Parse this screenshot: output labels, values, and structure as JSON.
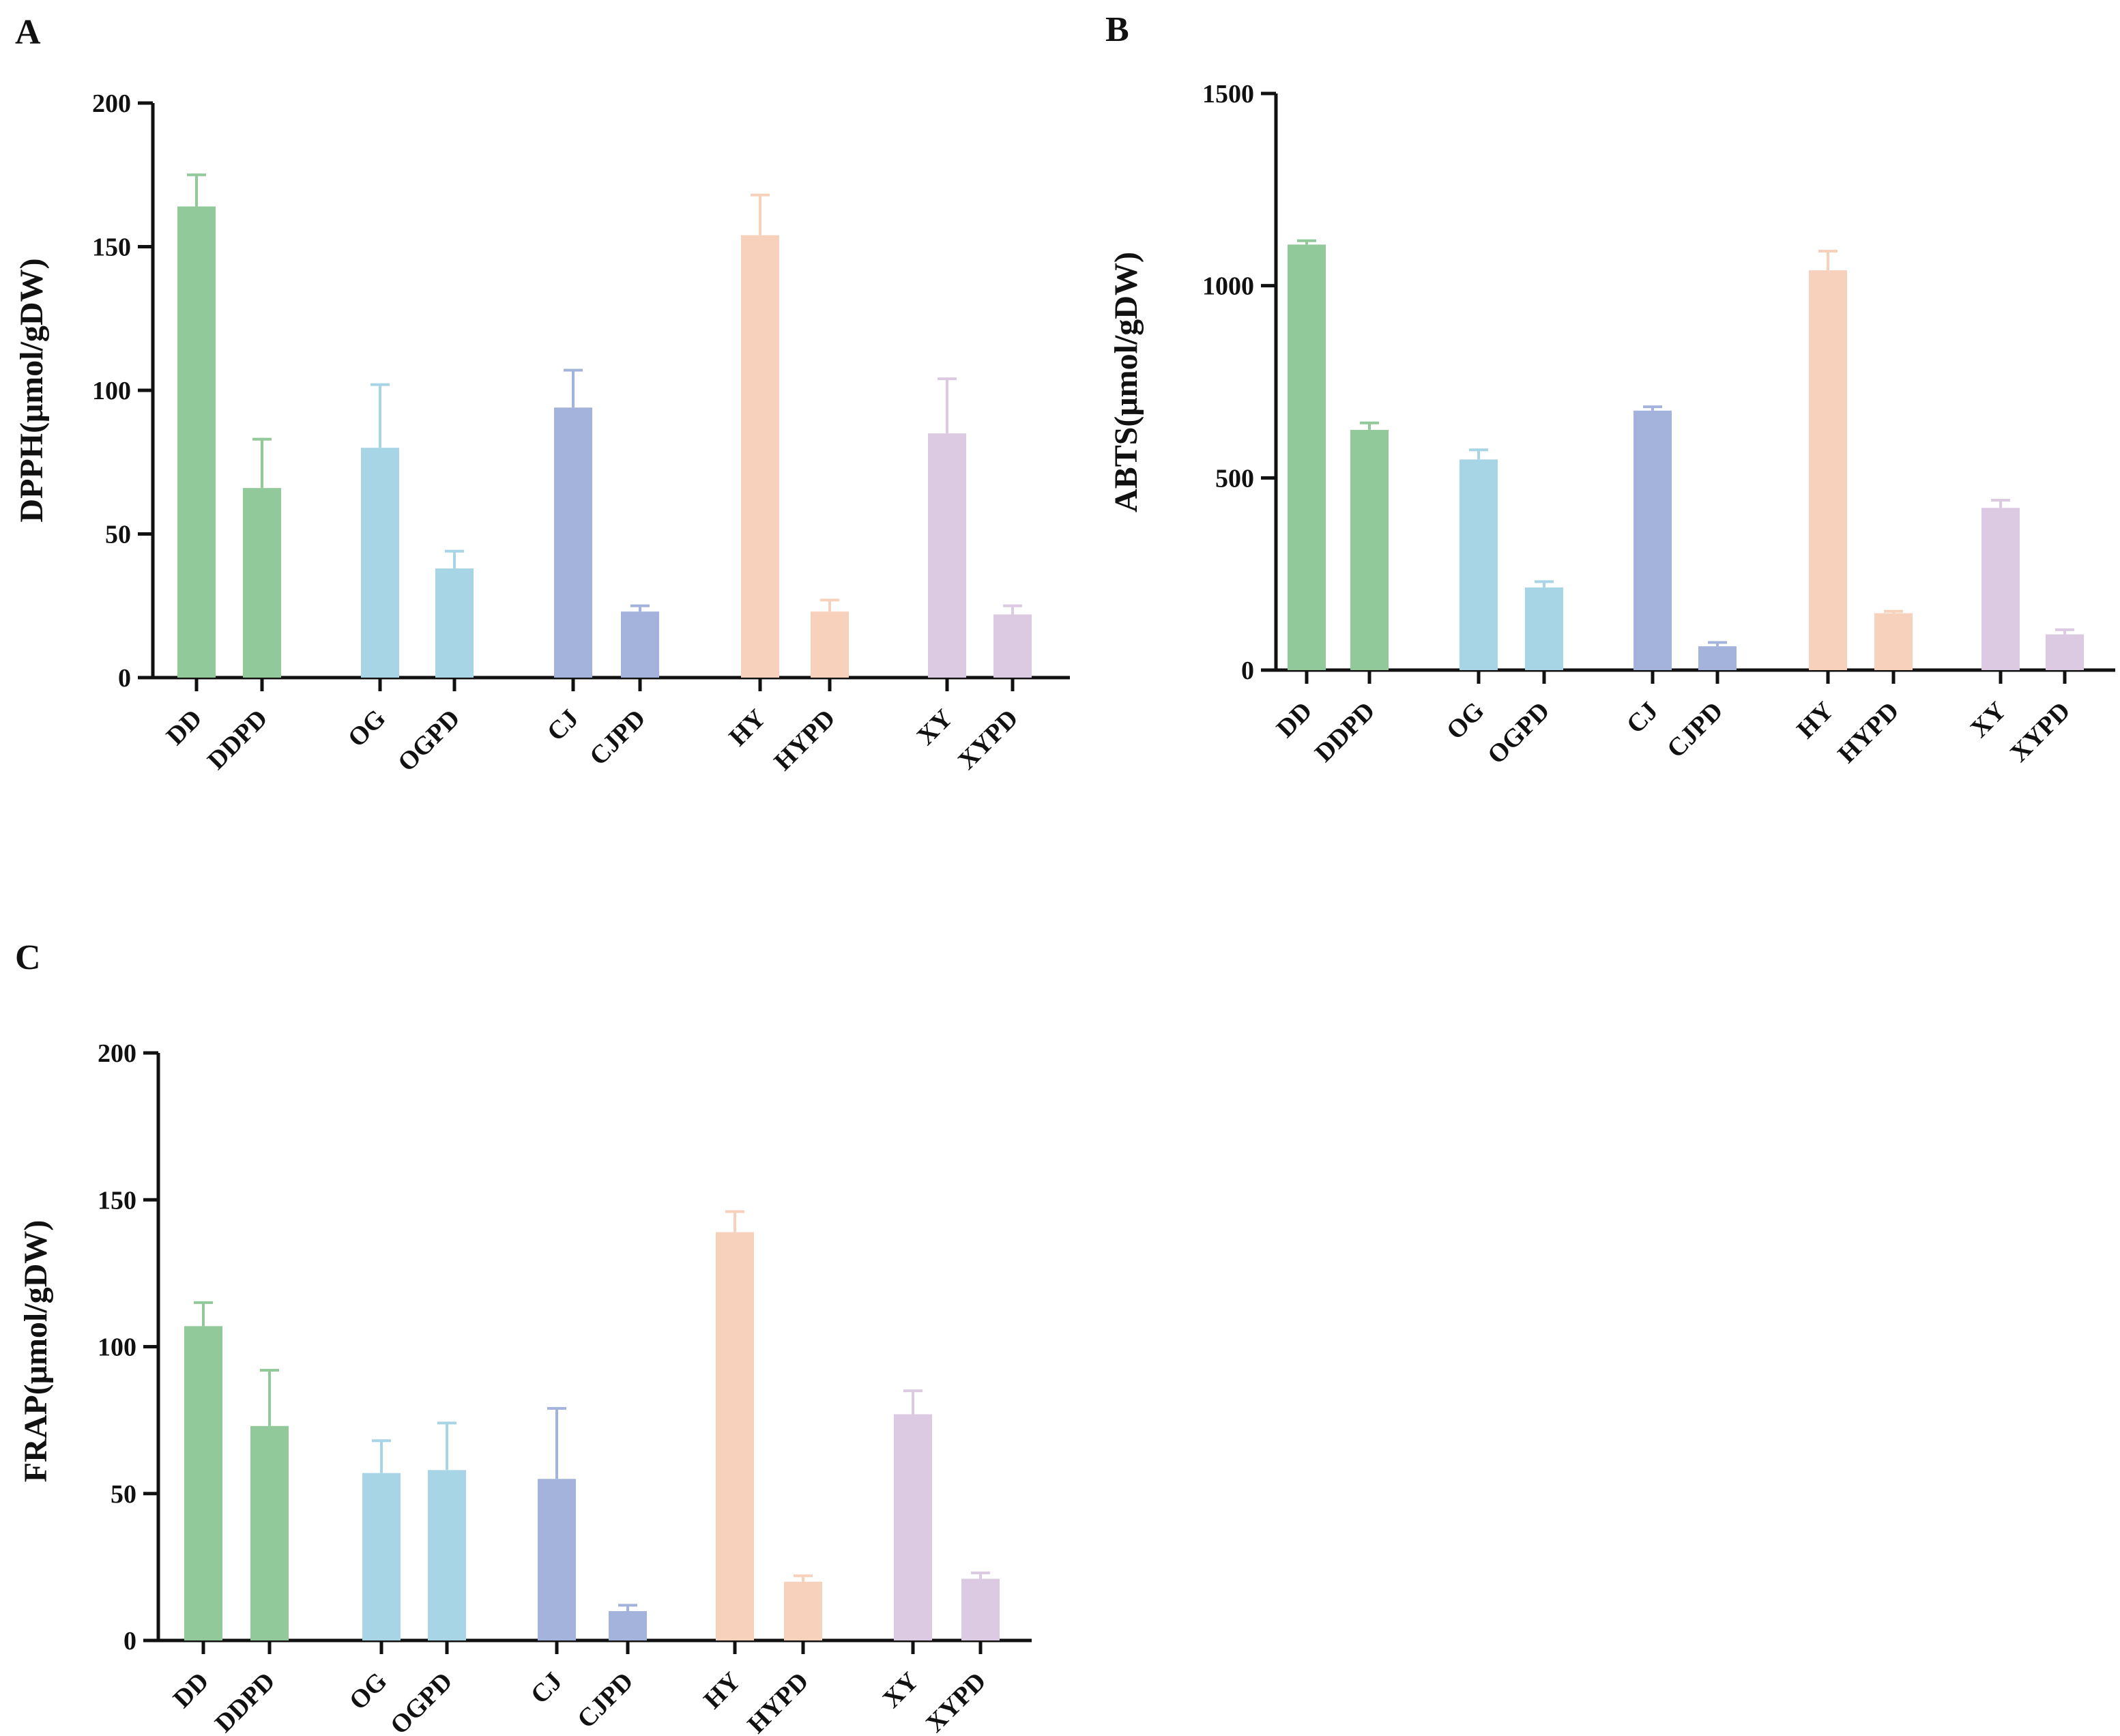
{
  "chart_data": [
    {
      "panel": "A",
      "type": "bar",
      "title": "",
      "xlabel": "",
      "ylabel": "DPPH(μmol/gDW)",
      "ylim": [
        0,
        200
      ],
      "yticks": [
        "0",
        "50",
        "100",
        "150",
        "200"
      ],
      "categories": [
        "DD",
        "DDPD",
        "OG",
        "OGPD",
        "CJ",
        "CJPD",
        "HY",
        "HYPD",
        "XY",
        "XYPD"
      ],
      "values": [
        164,
        66,
        80,
        38,
        94,
        23,
        154,
        23,
        85,
        22
      ],
      "errors": [
        11,
        17,
        22,
        6,
        13,
        2,
        14,
        4,
        19,
        3
      ],
      "grid": false
    },
    {
      "panel": "B",
      "type": "bar",
      "title": "",
      "xlabel": "",
      "ylabel": "ABTS(μmol/gDW)",
      "ylim": [
        0,
        1500
      ],
      "yticks": [
        "0",
        "500",
        "1000",
        "1500"
      ],
      "categories": [
        "DD",
        "DDPD",
        "OG",
        "OGPD",
        "CJ",
        "CJPD",
        "HY",
        "HYPD",
        "XY",
        "XYPD"
      ],
      "values": [
        1107,
        625,
        548,
        215,
        675,
        62,
        1040,
        148,
        422,
        93
      ],
      "errors": [
        10,
        18,
        25,
        15,
        10,
        10,
        50,
        5,
        20,
        12
      ],
      "grid": false
    },
    {
      "panel": "C",
      "type": "bar",
      "title": "",
      "xlabel": "",
      "ylabel": "FRAP(μmol/gDW)",
      "ylim": [
        0,
        200
      ],
      "yticks": [
        "0",
        "50",
        "100",
        "150",
        "200"
      ],
      "categories": [
        "DD",
        "DDPD",
        "OG",
        "OGPD",
        "CJ",
        "CJPD",
        "HY",
        "HYPD",
        "XY",
        "XYPD"
      ],
      "values": [
        107,
        73,
        57,
        58,
        55,
        10,
        139,
        20,
        77,
        21
      ],
      "errors": [
        8,
        19,
        11,
        16,
        24,
        2,
        7,
        2,
        8,
        2
      ],
      "grid": false
    }
  ],
  "colors": {
    "DD": "#92c99a",
    "DDPD": "#92c99a",
    "OG": "#a8d5e5",
    "OGPD": "#a8d5e5",
    "CJ": "#a3b3db",
    "CJPD": "#a3b3db",
    "HY": "#f8d1bc",
    "HYPD": "#f8d1bc",
    "XY": "#dcc9e2",
    "XYPD": "#dcc9e2",
    "axis": "#111111"
  }
}
